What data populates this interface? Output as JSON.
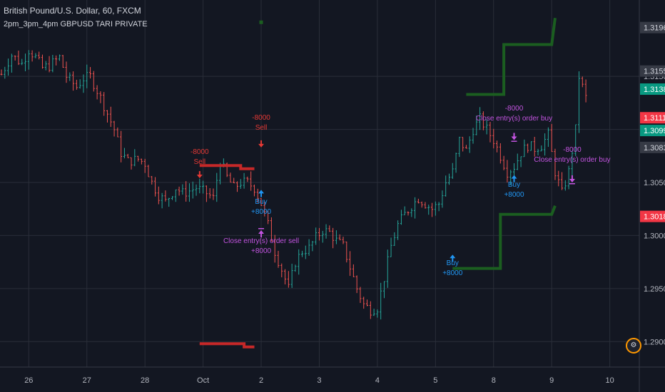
{
  "header": {
    "symbol_line": "British Pound/U.S. Dollar, 60, FXCM",
    "study_line": "2pm_3pm_4pm GBPUSD TARI PRIVATE"
  },
  "colors": {
    "background": "#131722",
    "grid": "#2a2e39",
    "axis_text": "#b2b5be",
    "candle_up": "#26a69a",
    "candle_down": "#ef5350",
    "green_line": "#1b5e20",
    "red_line": "#c62828",
    "sell_color": "#e53935",
    "buy_color": "#2196f3",
    "close_color": "#c354e0"
  },
  "chart_data": {
    "type": "candlestick",
    "title": "British Pound/U.S. Dollar, 60, FXCM",
    "indicator": "2pm_3pm_4pm GBPUSD TARI PRIVATE",
    "x_tick_labels": [
      "26",
      "27",
      "28",
      "Oct",
      "2",
      "3",
      "4",
      "5",
      "8",
      "9",
      "10"
    ],
    "y_tick_labels": [
      "1.2900",
      "1.2950",
      "1.3000",
      "1.3050",
      "1.3100",
      "1.3150"
    ],
    "ylim": [
      1.2876,
      1.3222
    ],
    "grid": true,
    "price_badges": [
      {
        "value": "1.3196",
        "bg": "#363a45",
        "fg": "#d1d4dc"
      },
      {
        "value": "1.3155",
        "bg": "#363a45",
        "fg": "#d1d4dc"
      },
      {
        "value": "1.3138",
        "bg": "#089981",
        "fg": "#ffffff"
      },
      {
        "value": "1.3111",
        "bg": "#f23645",
        "fg": "#ffffff"
      },
      {
        "value": "1.3099",
        "bg": "#089981",
        "fg": "#ffffff"
      },
      {
        "value": "1.3083",
        "bg": "#363a45",
        "fg": "#d1d4dc"
      },
      {
        "value": "1.3018",
        "bg": "#f23645",
        "fg": "#ffffff"
      }
    ],
    "close_path": [
      [
        0,
        1.3152
      ],
      [
        3,
        1.317
      ],
      [
        6,
        1.3162
      ],
      [
        8,
        1.3175
      ],
      [
        10,
        1.3168
      ],
      [
        12,
        1.3158
      ],
      [
        14,
        1.316
      ],
      [
        17,
        1.3168
      ],
      [
        19,
        1.315
      ],
      [
        22,
        1.314
      ],
      [
        24,
        1.3148
      ],
      [
        26,
        1.315
      ],
      [
        29,
        1.313
      ],
      [
        31,
        1.3115
      ],
      [
        33,
        1.31
      ],
      [
        35,
        1.3078
      ],
      [
        37,
        1.307
      ],
      [
        40,
        1.3072
      ],
      [
        42,
        1.3068
      ],
      [
        44,
        1.305
      ],
      [
        46,
        1.3038
      ],
      [
        48,
        1.3032
      ],
      [
        51,
        1.3045
      ],
      [
        53,
        1.304
      ],
      [
        55,
        1.3042
      ],
      [
        57,
        1.3045
      ],
      [
        60,
        1.304
      ],
      [
        62,
        1.3035
      ],
      [
        64,
        1.307
      ],
      [
        66,
        1.3055
      ],
      [
        68,
        1.3045
      ],
      [
        70,
        1.305
      ],
      [
        72,
        1.305
      ],
      [
        74,
        1.3045
      ],
      [
        76,
        1.303
      ],
      [
        78,
        1.301
      ],
      [
        80,
        1.2985
      ],
      [
        82,
        1.2968
      ],
      [
        84,
        1.295
      ],
      [
        86,
        1.2975
      ],
      [
        88,
        1.2985
      ],
      [
        90,
        1.2988
      ],
      [
        92,
        1.2998
      ],
      [
        94,
        1.3005
      ],
      [
        96,
        1.3003
      ],
      [
        98,
        1.2995
      ],
      [
        100,
        1.299
      ],
      [
        102,
        1.297
      ],
      [
        104,
        1.295
      ],
      [
        106,
        1.2935
      ],
      [
        108,
        1.293
      ],
      [
        110,
        1.2932
      ],
      [
        112,
        1.296
      ],
      [
        114,
        1.299
      ],
      [
        116,
        1.301
      ],
      [
        118,
        1.302
      ],
      [
        120,
        1.3028
      ],
      [
        122,
        1.3035
      ],
      [
        124,
        1.303
      ],
      [
        126,
        1.3025
      ],
      [
        128,
        1.303
      ],
      [
        130,
        1.305
      ],
      [
        132,
        1.306
      ],
      [
        134,
        1.309
      ],
      [
        136,
        1.308
      ],
      [
        138,
        1.31
      ],
      [
        140,
        1.311
      ],
      [
        142,
        1.31
      ],
      [
        144,
        1.309
      ],
      [
        146,
        1.3075
      ],
      [
        148,
        1.306
      ],
      [
        150,
        1.3065
      ],
      [
        152,
        1.3078
      ],
      [
        154,
        1.3085
      ],
      [
        156,
        1.3082
      ],
      [
        158,
        1.3085
      ],
      [
        160,
        1.3095
      ],
      [
        162,
        1.306
      ],
      [
        164,
        1.304
      ],
      [
        166,
        1.306
      ],
      [
        168,
        1.31
      ],
      [
        169,
        1.315
      ],
      [
        171,
        1.313
      ]
    ],
    "lines": [
      {
        "color": "green",
        "points": [
          [
            136,
            1.3133
          ],
          [
            147,
            1.3133
          ],
          [
            147,
            1.318
          ],
          [
            161,
            1.318
          ],
          [
            162,
            1.3205
          ]
        ]
      },
      {
        "color": "green",
        "points": [
          [
            132,
            1.2969
          ],
          [
            146,
            1.2969
          ],
          [
            146,
            1.302
          ],
          [
            161,
            1.302
          ],
          [
            162,
            1.3028
          ]
        ]
      },
      {
        "color": "red",
        "points": [
          [
            58,
            1.3066
          ],
          [
            70,
            1.3066
          ],
          [
            70,
            1.3063
          ],
          [
            74,
            1.3063
          ]
        ]
      },
      {
        "color": "red",
        "points": [
          [
            58,
            1.2898
          ],
          [
            71,
            1.2898
          ],
          [
            71,
            1.2895
          ],
          [
            74,
            1.2895
          ]
        ]
      }
    ],
    "dot": {
      "x": 76,
      "y": 1.3201,
      "color": "green"
    },
    "signals": [
      {
        "x": 58,
        "price": 1.3054,
        "type": "sell",
        "dir": "down",
        "lines": [
          "-8000",
          "Sell"
        ],
        "label_y": 1.3077
      },
      {
        "x": 76,
        "price": 1.3083,
        "type": "sell",
        "dir": "down",
        "lines": [
          "-8000",
          "Sell"
        ],
        "label_y": 1.3109
      },
      {
        "x": 76,
        "price": 1.3043,
        "type": "buy",
        "dir": "up",
        "lines": [
          "Buy",
          "+8000"
        ],
        "label_y": 1.303
      },
      {
        "x": 76,
        "price": 1.3005,
        "type": "close",
        "dir": "up",
        "lines": [
          "Close entry(s) order sell",
          "+8000"
        ],
        "label_y": 1.2993
      },
      {
        "x": 132,
        "price": 1.2982,
        "type": "buy",
        "dir": "up",
        "lines": [
          "Buy",
          "+8000"
        ],
        "label_y": 1.2972
      },
      {
        "x": 150,
        "price": 1.309,
        "type": "close",
        "dir": "down",
        "lines": [
          "-8000",
          "Close entry(s) order buy"
        ],
        "label_y": 1.3118
      },
      {
        "x": 150,
        "price": 1.3057,
        "type": "buy",
        "dir": "up",
        "lines": [
          "Buy",
          "+8000"
        ],
        "label_y": 1.3046
      },
      {
        "x": 167,
        "price": 1.305,
        "type": "close",
        "dir": "down",
        "lines": [
          "-8000",
          "Close entry(s) order buy"
        ],
        "label_y": 1.3079
      }
    ]
  }
}
